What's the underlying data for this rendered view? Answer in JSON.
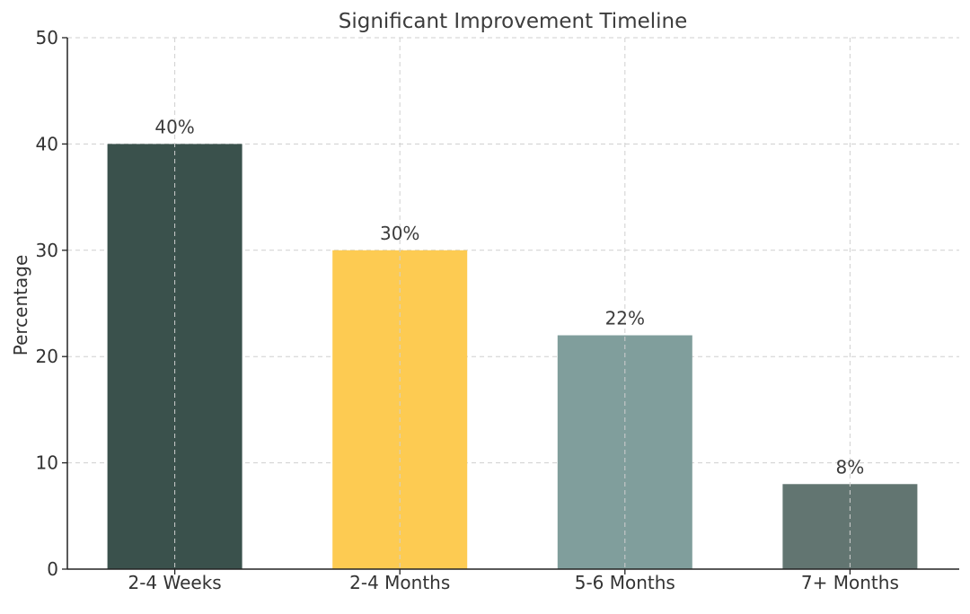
{
  "chart_data": {
    "type": "bar",
    "title": "Significant Improvement Timeline",
    "xlabel": "",
    "ylabel": "Percentage",
    "categories": [
      "2-4 Weeks",
      "2-4 Months",
      "5-6 Months",
      "7+ Months"
    ],
    "values": [
      40,
      30,
      22,
      8
    ],
    "value_labels": [
      "40%",
      "30%",
      "22%",
      "8%"
    ],
    "colors": [
      "#3a514c",
      "#fdcb52",
      "#809e9c",
      "#627571"
    ],
    "ylim": [
      0,
      50
    ],
    "yticks": [
      0,
      10,
      20,
      30,
      40,
      50
    ],
    "ytick_labels": [
      "0",
      "10",
      "20",
      "30",
      "40",
      "50"
    ],
    "grid": true,
    "legend": "none"
  }
}
